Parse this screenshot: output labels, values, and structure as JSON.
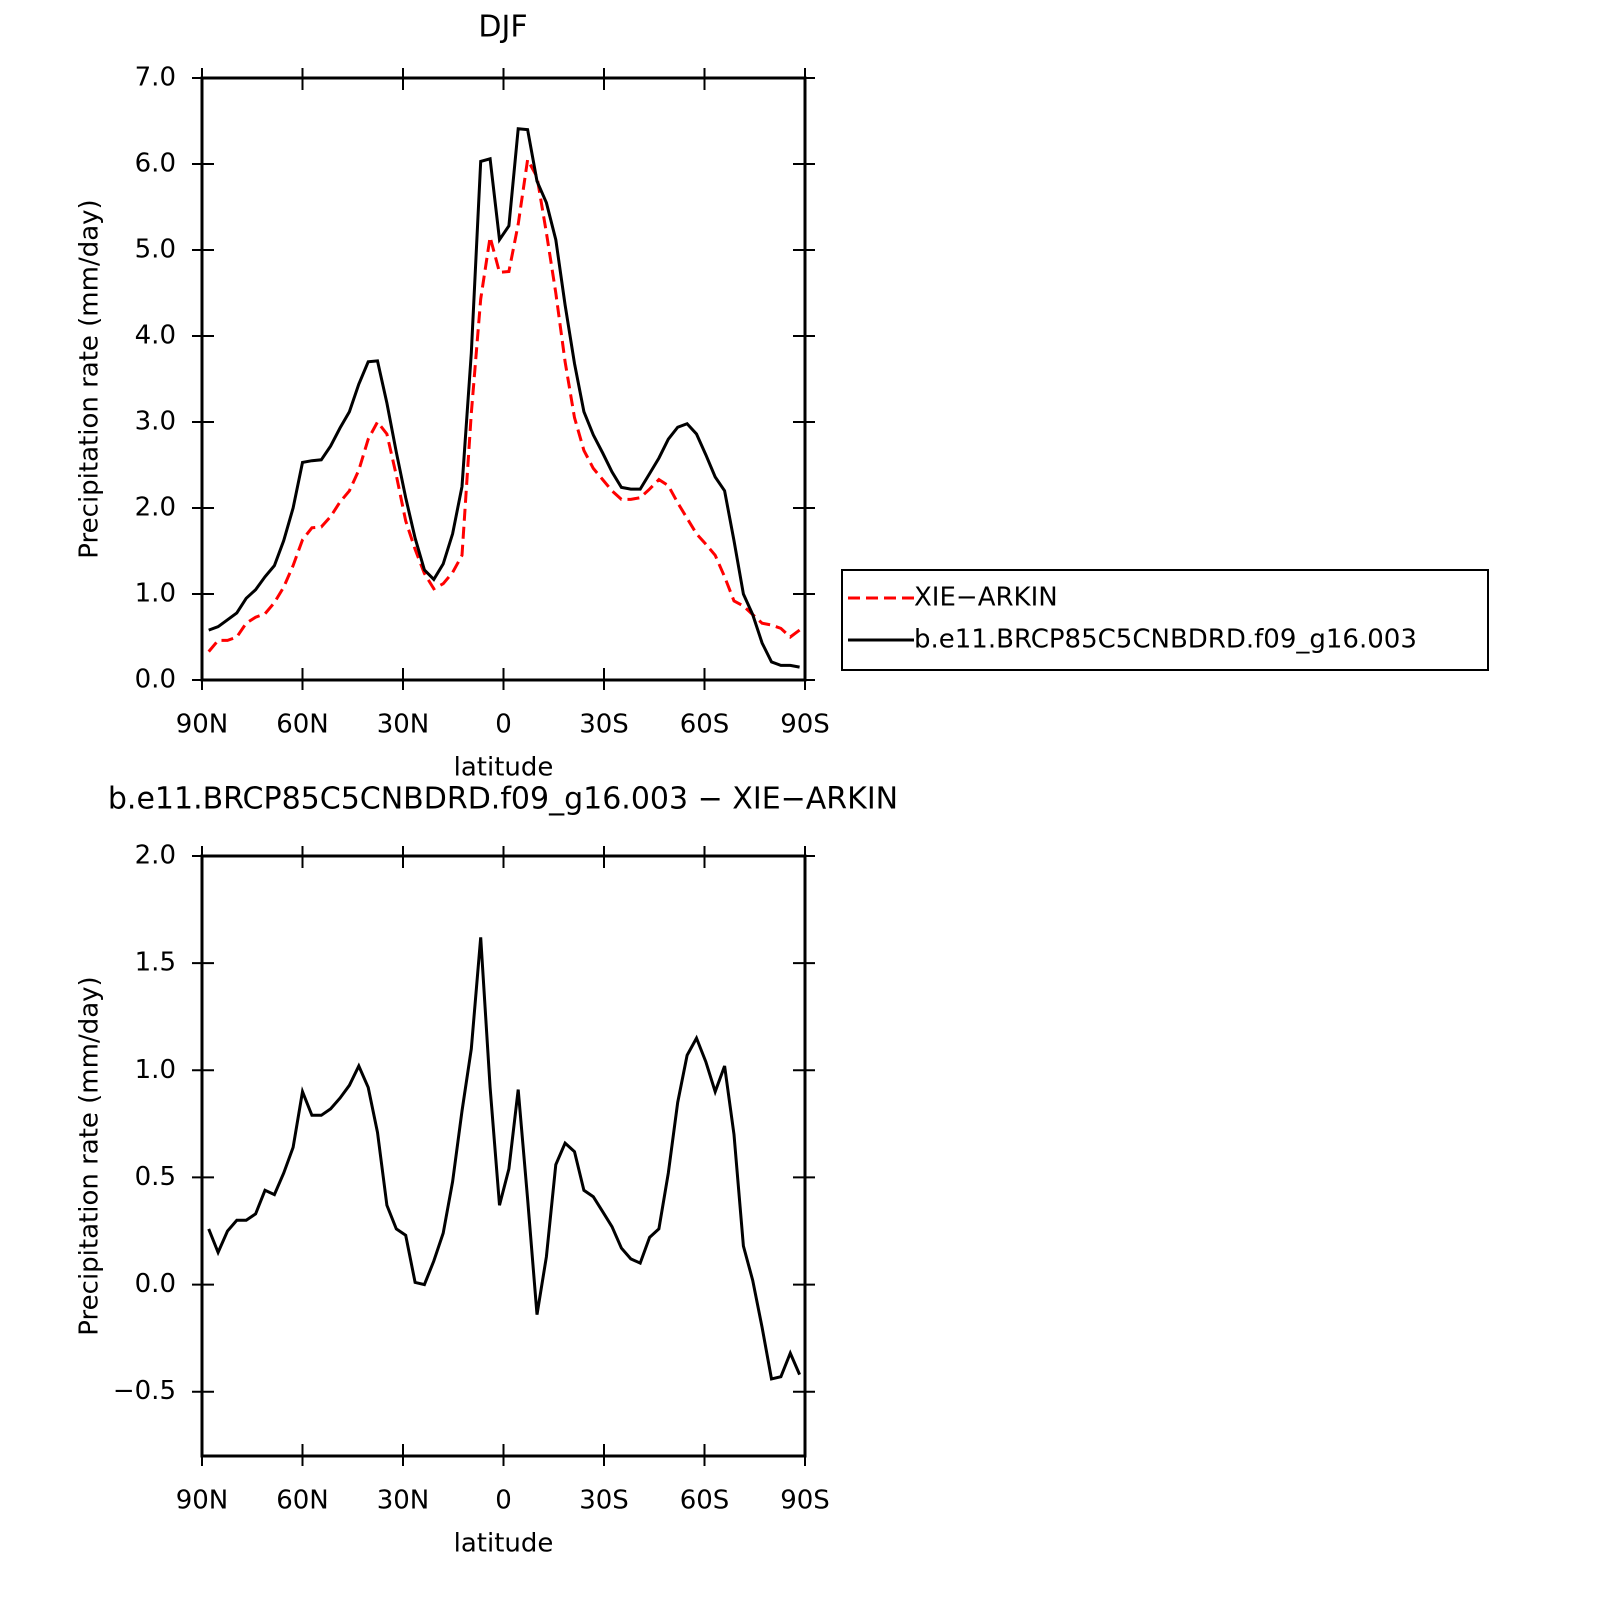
{
  "chart_data": [
    {
      "type": "line",
      "title": "DJF",
      "xlabel": "latitude",
      "ylabel": "Precipitation rate (mm/day)",
      "xlim": [
        90,
        -90
      ],
      "xticks": [
        {
          "value": 90,
          "label": "90N"
        },
        {
          "value": 60,
          "label": "60N"
        },
        {
          "value": 30,
          "label": "30N"
        },
        0,
        {
          "value": -30,
          "label": "30S"
        },
        {
          "value": -60,
          "label": "60S"
        },
        {
          "value": -90,
          "label": "90S"
        }
      ],
      "ylim": [
        0,
        7
      ],
      "yticks": [
        {
          "value": 0,
          "label": "0.0"
        },
        {
          "value": 1,
          "label": "1.0"
        },
        {
          "value": 2,
          "label": "2.0"
        },
        {
          "value": 3,
          "label": "3.0"
        },
        {
          "value": 4,
          "label": "4.0"
        },
        {
          "value": 5,
          "label": "5.0"
        },
        {
          "value": 6,
          "label": "6.0"
        },
        {
          "value": 7,
          "label": "7.0"
        }
      ],
      "x": [
        88.0,
        85.2,
        82.4,
        79.6,
        76.8,
        74.0,
        71.2,
        68.4,
        65.6,
        62.8,
        60.0,
        57.2,
        54.4,
        51.6,
        48.8,
        46.0,
        43.2,
        40.4,
        37.6,
        34.8,
        32.0,
        29.2,
        26.4,
        23.6,
        20.8,
        18.0,
        15.2,
        12.4,
        9.6,
        6.8,
        4.0,
        1.2,
        -1.6,
        -4.4,
        -7.2,
        -10.0,
        -12.8,
        -15.6,
        -18.4,
        -21.2,
        -24.0,
        -26.8,
        -29.6,
        -32.4,
        -35.2,
        -38.0,
        -40.8,
        -43.6,
        -46.4,
        -49.2,
        -52.0,
        -54.8,
        -57.6,
        -60.4,
        -63.2,
        -66.0,
        -68.8,
        -71.6,
        -74.4,
        -77.2,
        -80.0,
        -82.8,
        -85.6,
        -88.4
      ],
      "legend": "right",
      "series": [
        {
          "name": "XIE−ARKIN",
          "color": "#ff0000",
          "dash": true,
          "values": [
            0.33,
            0.46,
            0.46,
            0.5,
            0.66,
            0.73,
            0.77,
            0.9,
            1.08,
            1.33,
            1.63,
            1.77,
            1.78,
            1.9,
            2.07,
            2.2,
            2.44,
            2.8,
            3.0,
            2.86,
            2.38,
            1.85,
            1.52,
            1.24,
            1.06,
            1.12,
            1.25,
            1.45,
            3.1,
            4.43,
            5.15,
            4.74,
            4.75,
            5.3,
            6.05,
            5.85,
            5.2,
            4.5,
            3.7,
            3.05,
            2.67,
            2.46,
            2.33,
            2.2,
            2.1,
            2.1,
            2.12,
            2.22,
            2.33,
            2.26,
            2.06,
            1.88,
            1.7,
            1.58,
            1.45,
            1.2,
            0.92,
            0.86,
            0.76,
            0.66,
            0.64,
            0.6,
            0.5,
            0.58
          ]
        },
        {
          "name": "b.e11.BRCP85C5CNBDRD.f09_g16.003",
          "color": "#000000",
          "dash": false,
          "values": [
            0.58,
            0.62,
            0.7,
            0.78,
            0.95,
            1.05,
            1.2,
            1.33,
            1.62,
            2.0,
            2.53,
            2.55,
            2.56,
            2.72,
            2.93,
            3.12,
            3.44,
            3.7,
            3.71,
            3.22,
            2.65,
            2.12,
            1.65,
            1.28,
            1.17,
            1.35,
            1.7,
            2.25,
            3.8,
            6.03,
            6.06,
            5.12,
            5.28,
            6.41,
            6.4,
            5.8,
            5.55,
            5.12,
            4.36,
            3.68,
            3.12,
            2.85,
            2.64,
            2.42,
            2.24,
            2.22,
            2.22,
            2.4,
            2.58,
            2.8,
            2.94,
            2.98,
            2.86,
            2.62,
            2.36,
            2.2,
            1.62,
            1.0,
            0.76,
            0.43,
            0.21,
            0.17,
            0.17,
            0.15
          ]
        }
      ]
    },
    {
      "type": "line",
      "title": "b.e11.BRCP85C5CNBDRD.f09_g16.003 − XIE−ARKIN",
      "xlabel": "latitude",
      "ylabel": "Precipitation rate (mm/day)",
      "xlim": [
        90,
        -90
      ],
      "xticks": [
        {
          "value": 90,
          "label": "90N"
        },
        {
          "value": 60,
          "label": "60N"
        },
        {
          "value": 30,
          "label": "30N"
        },
        0,
        {
          "value": -30,
          "label": "30S"
        },
        {
          "value": -60,
          "label": "60S"
        },
        {
          "value": -90,
          "label": "90S"
        }
      ],
      "ylim": [
        -0.8,
        2.0
      ],
      "yticks": [
        {
          "value": -0.5,
          "label": "−0.5"
        },
        {
          "value": 0,
          "label": "0.0"
        },
        0.5,
        {
          "value": 1,
          "label": "1.0"
        },
        1.5,
        {
          "value": 2,
          "label": "2.0"
        }
      ],
      "x": [
        88.0,
        85.2,
        82.4,
        79.6,
        76.8,
        74.0,
        71.2,
        68.4,
        65.6,
        62.8,
        60.0,
        57.2,
        54.4,
        51.6,
        48.8,
        46.0,
        43.2,
        40.4,
        37.6,
        34.8,
        32.0,
        29.2,
        26.4,
        23.6,
        20.8,
        18.0,
        15.2,
        12.4,
        9.6,
        6.8,
        4.0,
        1.2,
        -1.6,
        -4.4,
        -7.2,
        -10.0,
        -12.8,
        -15.6,
        -18.4,
        -21.2,
        -24.0,
        -26.8,
        -29.6,
        -32.4,
        -35.2,
        -38.0,
        -40.8,
        -43.6,
        -46.4,
        -49.2,
        -52.0,
        -54.8,
        -57.6,
        -60.4,
        -63.2,
        -66.0,
        -68.8,
        -71.6,
        -74.4,
        -77.2,
        -80.0,
        -82.8,
        -85.6,
        -88.4
      ],
      "series": [
        {
          "color": "#000000",
          "dash": false,
          "values": [
            0.26,
            0.15,
            0.25,
            0.3,
            0.3,
            0.33,
            0.44,
            0.42,
            0.52,
            0.64,
            0.9,
            0.79,
            0.79,
            0.82,
            0.87,
            0.93,
            1.02,
            0.92,
            0.71,
            0.37,
            0.26,
            0.23,
            0.01,
            0.0,
            0.11,
            0.24,
            0.48,
            0.81,
            1.1,
            1.62,
            0.92,
            0.37,
            0.54,
            0.91,
            0.4,
            -0.14,
            0.13,
            0.56,
            0.66,
            0.62,
            0.44,
            0.41,
            0.34,
            0.27,
            0.17,
            0.12,
            0.1,
            0.22,
            0.26,
            0.52,
            0.85,
            1.07,
            1.15,
            1.04,
            0.9,
            1.02,
            0.7,
            0.18,
            0.02,
            -0.2,
            -0.44,
            -0.43,
            -0.32,
            -0.42
          ]
        }
      ]
    }
  ]
}
